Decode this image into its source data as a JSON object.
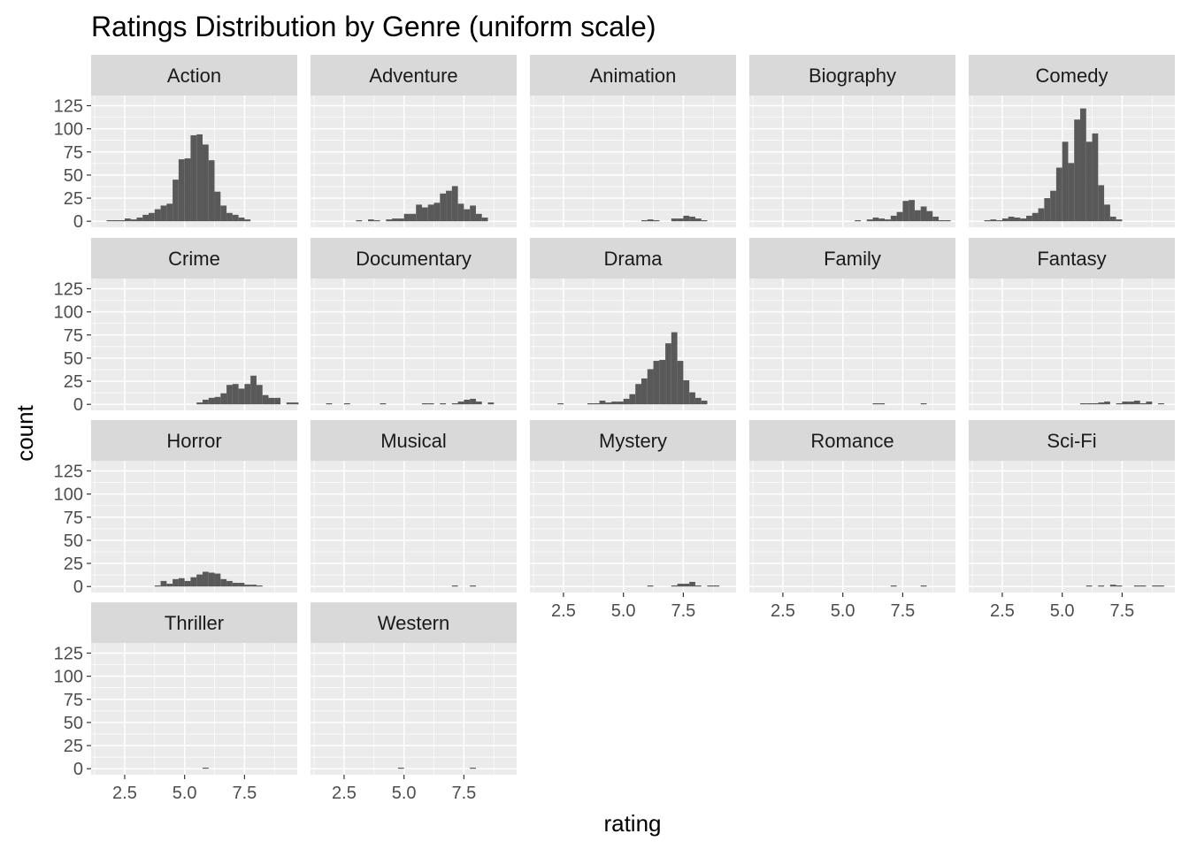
{
  "chart_data": {
    "type": "bar",
    "subtype": "faceted-histogram",
    "title": "Ratings Distribution by Genre (uniform scale)",
    "xlabel": "rating",
    "ylabel": "count",
    "xlim": [
      1.1,
      9.7
    ],
    "ylim": [
      -6.5,
      136
    ],
    "x_ticks": [
      2.5,
      5.0,
      7.5
    ],
    "x_tick_labels": [
      "2.5",
      "5.0",
      "7.5"
    ],
    "y_ticks": [
      0,
      25,
      50,
      75,
      100,
      125
    ],
    "y_tick_labels": [
      "0",
      "25",
      "50",
      "75",
      "100",
      "125"
    ],
    "bin_width": 0.25,
    "bin_start": 1.5,
    "grid": true,
    "facet_columns": 5,
    "colors": {
      "bar": "#595959",
      "panel": "#ebebeb",
      "strip": "#d9d9d9",
      "grid": "#ffffff"
    },
    "facets": [
      {
        "genre": "Action",
        "counts": [
          0,
          1,
          1,
          1,
          3,
          2,
          4,
          7,
          9,
          13,
          17,
          19,
          45,
          67,
          68,
          93,
          94,
          83,
          66,
          32,
          17,
          9,
          7,
          4,
          2,
          0,
          0,
          0,
          0,
          0
        ]
      },
      {
        "genre": "Adventure",
        "counts": [
          0,
          0,
          0,
          0,
          0,
          0,
          1,
          0,
          2,
          1,
          0,
          2,
          3,
          3,
          8,
          8,
          18,
          15,
          18,
          20,
          30,
          33,
          38,
          19,
          13,
          17,
          8,
          4,
          0,
          0
        ]
      },
      {
        "genre": "Animation",
        "counts": [
          0,
          0,
          0,
          0,
          0,
          0,
          0,
          0,
          0,
          0,
          0,
          0,
          0,
          0,
          0,
          0,
          0,
          1,
          2,
          1,
          0,
          0,
          3,
          3,
          6,
          5,
          3,
          1,
          0,
          0
        ]
      },
      {
        "genre": "Biography",
        "counts": [
          0,
          0,
          0,
          0,
          0,
          0,
          0,
          0,
          0,
          0,
          0,
          0,
          0,
          0,
          0,
          0,
          1,
          0,
          2,
          4,
          3,
          2,
          6,
          10,
          22,
          23,
          12,
          16,
          11,
          5,
          1,
          1,
          0
        ]
      },
      {
        "genre": "Comedy",
        "counts": [
          0,
          1,
          2,
          1,
          3,
          5,
          4,
          3,
          6,
          9,
          14,
          25,
          33,
          58,
          86,
          63,
          110,
          122,
          86,
          95,
          39,
          18,
          5,
          2,
          0,
          0,
          0,
          0,
          0,
          0
        ]
      },
      {
        "genre": "Crime",
        "counts": [
          0,
          0,
          0,
          0,
          0,
          0,
          0,
          0,
          0,
          0,
          0,
          0,
          0,
          0,
          0,
          0,
          2,
          5,
          7,
          8,
          12,
          21,
          22,
          17,
          22,
          31,
          21,
          10,
          7,
          7,
          0,
          2,
          2,
          0
        ]
      },
      {
        "genre": "Documentary",
        "counts": [
          0,
          1,
          0,
          0,
          1,
          0,
          0,
          0,
          0,
          0,
          1,
          0,
          0,
          0,
          0,
          0,
          0,
          1,
          1,
          0,
          1,
          0,
          1,
          3,
          5,
          6,
          3,
          0,
          2,
          0
        ]
      },
      {
        "genre": "Drama",
        "counts": [
          0,
          0,
          0,
          1,
          0,
          0,
          0,
          0,
          1,
          1,
          4,
          2,
          3,
          3,
          6,
          11,
          22,
          28,
          38,
          47,
          48,
          66,
          78,
          47,
          26,
          13,
          7,
          4,
          0,
          0
        ]
      },
      {
        "genre": "Family",
        "counts": [
          0,
          0,
          0,
          0,
          0,
          0,
          0,
          0,
          0,
          0,
          0,
          0,
          0,
          0,
          0,
          0,
          0,
          0,
          0,
          1,
          1,
          0,
          0,
          0,
          0,
          0,
          0,
          1,
          0,
          0
        ]
      },
      {
        "genre": "Fantasy",
        "counts": [
          0,
          0,
          0,
          0,
          0,
          0,
          0,
          0,
          0,
          0,
          0,
          0,
          0,
          0,
          0,
          0,
          0,
          1,
          1,
          1,
          2,
          3,
          0,
          1,
          3,
          3,
          4,
          1,
          3,
          0,
          1,
          0
        ]
      },
      {
        "genre": "Horror",
        "counts": [
          0,
          0,
          0,
          0,
          0,
          0,
          0,
          0,
          0,
          1,
          6,
          3,
          8,
          9,
          6,
          10,
          13,
          16,
          15,
          14,
          8,
          6,
          4,
          4,
          2,
          2,
          1,
          0,
          0,
          0
        ]
      },
      {
        "genre": "Musical",
        "counts": [
          0,
          0,
          0,
          0,
          0,
          0,
          0,
          0,
          0,
          0,
          0,
          0,
          0,
          0,
          0,
          0,
          0,
          0,
          0,
          0,
          0,
          0,
          1,
          0,
          0,
          1,
          0,
          0,
          0,
          0
        ]
      },
      {
        "genre": "Mystery",
        "counts": [
          0,
          0,
          0,
          0,
          0,
          0,
          0,
          0,
          0,
          0,
          0,
          0,
          0,
          0,
          0,
          0,
          0,
          0,
          1,
          0,
          0,
          0,
          1,
          3,
          3,
          5,
          1,
          0,
          1,
          1
        ]
      },
      {
        "genre": "Romance",
        "counts": [
          0,
          0,
          0,
          0,
          0,
          0,
          0,
          0,
          0,
          0,
          0,
          0,
          0,
          0,
          0,
          0,
          0,
          0,
          0,
          0,
          0,
          0,
          1,
          0,
          0,
          0,
          0,
          1,
          0,
          0
        ]
      },
      {
        "genre": "Sci-Fi",
        "counts": [
          0,
          0,
          0,
          0,
          0,
          0,
          0,
          0,
          0,
          0,
          0,
          0,
          0,
          0,
          0,
          0,
          0,
          0,
          1,
          0,
          1,
          0,
          2,
          1,
          0,
          0,
          1,
          1,
          0,
          1,
          1
        ]
      },
      {
        "genre": "Thriller",
        "counts": [
          0,
          0,
          0,
          0,
          0,
          0,
          0,
          0,
          0,
          0,
          0,
          0,
          0,
          0,
          0,
          0,
          0,
          1,
          0,
          0,
          0,
          0,
          0,
          0,
          0,
          0,
          0,
          0,
          0,
          0
        ]
      },
      {
        "genre": "Western",
        "counts": [
          0,
          0,
          0,
          0,
          0,
          0,
          0,
          0,
          0,
          0,
          0,
          0,
          0,
          1,
          0,
          0,
          0,
          0,
          0,
          0,
          0,
          0,
          0,
          0,
          0,
          1,
          0,
          0,
          0,
          0
        ]
      }
    ]
  }
}
